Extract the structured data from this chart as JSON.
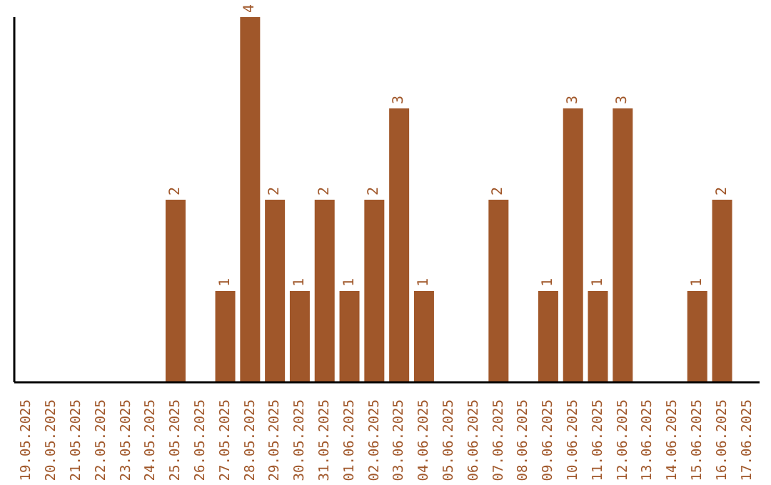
{
  "chart_data": {
    "type": "bar",
    "categories": [
      "19.05.2025",
      "20.05.2025",
      "21.05.2025",
      "22.05.2025",
      "23.05.2025",
      "24.05.2025",
      "25.05.2025",
      "26.05.2025",
      "27.05.2025",
      "28.05.2025",
      "29.05.2025",
      "30.05.2025",
      "31.05.2025",
      "01.06.2025",
      "02.06.2025",
      "03.06.2025",
      "04.06.2025",
      "05.06.2025",
      "06.06.2025",
      "07.06.2025",
      "08.06.2025",
      "09.06.2025",
      "10.06.2025",
      "11.06.2025",
      "12.06.2025",
      "13.06.2025",
      "14.06.2025",
      "15.06.2025",
      "16.06.2025",
      "17.06.2025"
    ],
    "values": [
      0,
      0,
      0,
      0,
      0,
      0,
      2,
      0,
      1,
      4,
      2,
      1,
      2,
      1,
      2,
      3,
      1,
      0,
      0,
      2,
      0,
      1,
      3,
      1,
      3,
      0,
      0,
      1,
      2,
      0
    ],
    "value_labels": [
      null,
      null,
      null,
      null,
      null,
      null,
      "2",
      null,
      "1",
      "4",
      "2",
      "1",
      "2",
      "1",
      "2",
      "3",
      "1",
      null,
      null,
      "2",
      null,
      "1",
      "3",
      "1",
      "3",
      null,
      null,
      "1",
      "2",
      null
    ],
    "color": "#a0572a",
    "tick_labels": "x",
    "grid": false
  }
}
